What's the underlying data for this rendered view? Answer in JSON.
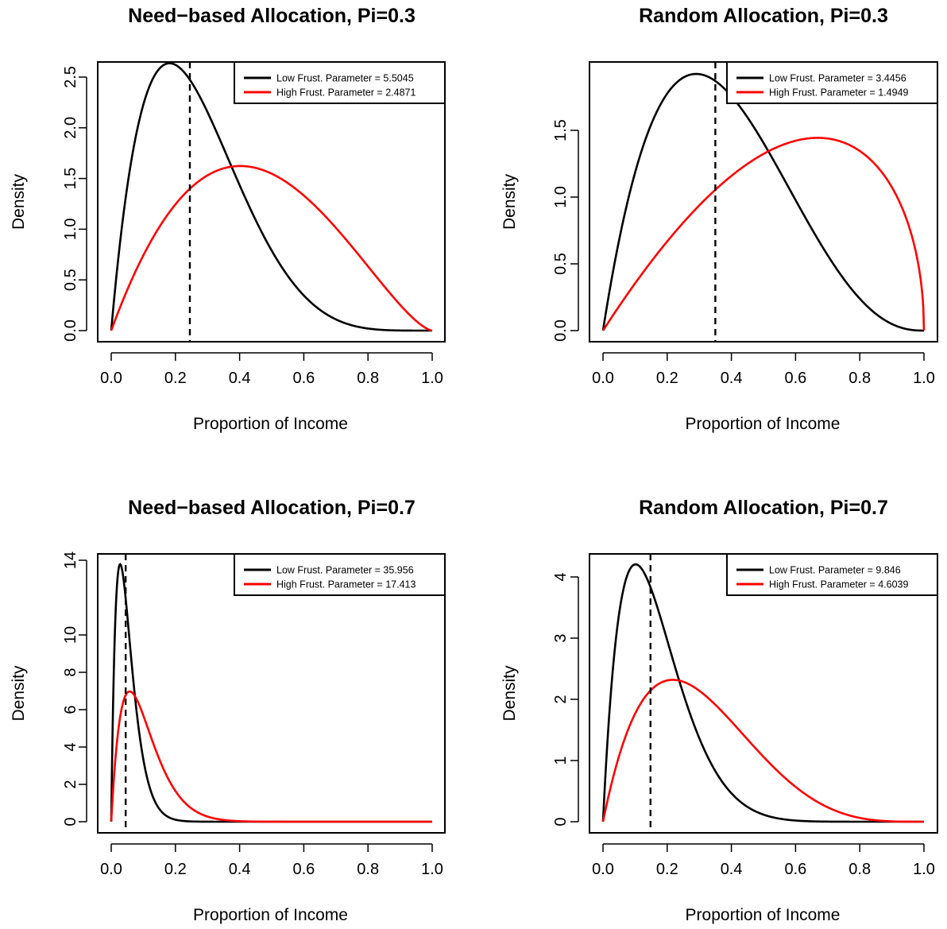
{
  "chart_data": [
    {
      "type": "line",
      "title": "Need−based Allocation, Pi=0.3",
      "xlabel": "Proportion of Income",
      "ylabel": "Density",
      "xlim": [
        0,
        1
      ],
      "ylim": [
        0,
        2.64
      ],
      "xticks": [
        "0.0",
        "0.2",
        "0.4",
        "0.6",
        "0.8",
        "1.0"
      ],
      "yticks": [
        "0.0",
        "0.5",
        "1.0",
        "1.5",
        "2.0",
        "2.5"
      ],
      "vline": 0.245,
      "legend_position": "top-right",
      "series": [
        {
          "name": "Low Frust. Parameter = 5.5045",
          "color": "#000000",
          "beta_a": 2,
          "beta_b": 5.5045
        },
        {
          "name": "High Frust. Parameter = 2.4871",
          "color": "#ff0000",
          "beta_a": 2,
          "beta_b": 2.4871
        }
      ]
    },
    {
      "type": "line",
      "title": "Random Allocation, Pi=0.3",
      "xlabel": "Proportion of Income",
      "ylabel": "Density",
      "xlim": [
        0,
        1
      ],
      "ylim": [
        0,
        1.93
      ],
      "xticks": [
        "0.0",
        "0.2",
        "0.4",
        "0.6",
        "0.8",
        "1.0"
      ],
      "yticks": [
        "0.0",
        "0.5",
        "1.0",
        "1.5"
      ],
      "vline": 0.35,
      "legend_position": "top-right",
      "series": [
        {
          "name": "Low Frust. Parameter = 3.4456",
          "color": "#000000",
          "beta_a": 2,
          "beta_b": 3.4456
        },
        {
          "name": "High Frust. Parameter = 1.4949",
          "color": "#ff0000",
          "beta_a": 2,
          "beta_b": 1.4949
        }
      ]
    },
    {
      "type": "line",
      "title": "Need−based Allocation, Pi=0.7",
      "xlabel": "Proportion of Income",
      "ylabel": "Density",
      "xlim": [
        0,
        1
      ],
      "ylim": [
        0,
        13.8
      ],
      "xticks": [
        "0.0",
        "0.2",
        "0.4",
        "0.6",
        "0.8",
        "1.0"
      ],
      "yticks": [
        "0",
        "2",
        "4",
        "6",
        "8",
        "10",
        "14"
      ],
      "vline": 0.045,
      "legend_position": "top-right",
      "series": [
        {
          "name": "Low Frust. Parameter = 35.956",
          "color": "#000000",
          "beta_a": 2,
          "beta_b": 35.956
        },
        {
          "name": "High Frust. Parameter = 17.413",
          "color": "#ff0000",
          "beta_a": 2,
          "beta_b": 17.413
        }
      ]
    },
    {
      "type": "line",
      "title": "Random Allocation, Pi=0.7",
      "xlabel": "Proportion of Income",
      "ylabel": "Density",
      "xlim": [
        0,
        1
      ],
      "ylim": [
        0,
        4.2
      ],
      "xticks": [
        "0.0",
        "0.2",
        "0.4",
        "0.6",
        "0.8",
        "1.0"
      ],
      "yticks": [
        "0",
        "1",
        "2",
        "3",
        "4"
      ],
      "vline": 0.148,
      "legend_position": "top-right",
      "series": [
        {
          "name": "Low Frust. Parameter = 9.846",
          "color": "#000000",
          "beta_a": 2,
          "beta_b": 9.846
        },
        {
          "name": "High Frust. Parameter = 4.6039",
          "color": "#ff0000",
          "beta_a": 2,
          "beta_b": 4.6039
        }
      ]
    }
  ]
}
